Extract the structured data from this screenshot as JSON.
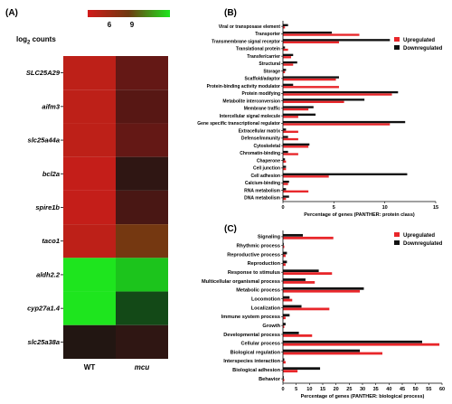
{
  "panels": {
    "a": "(A)",
    "b": "(B)",
    "c": "(C)"
  },
  "colors": {
    "up": "#e8262a",
    "down": "#111111",
    "high": "#1ee51e",
    "low": "#d11a1a"
  },
  "scale": {
    "title_main": "log",
    "title_sub": "2",
    "title_rest": " counts",
    "min": "6",
    "max": "9"
  },
  "chart_data": [
    {
      "type": "heatmap",
      "title": "",
      "columns": [
        "WT",
        "mcu"
      ],
      "rows": [
        "SLC25A29",
        "aifm3",
        "slc25a44a",
        "bcl2a",
        "spire1b",
        "taco1",
        "aldh2.2",
        "cyp27a1.4",
        "slc25a38a"
      ],
      "values": [
        [
          6.3,
          5.5
        ],
        [
          6.3,
          5.4
        ],
        [
          6.3,
          5.5
        ],
        [
          6.2,
          5.1
        ],
        [
          6.2,
          5.3
        ],
        [
          6.3,
          7.4
        ],
        [
          10.5,
          10.2
        ],
        [
          9.0,
          9.1
        ],
        [
          5.0,
          5.1
        ]
      ],
      "colorbar": {
        "ticks": [
          "6",
          "9"
        ],
        "low_color": "#d11a1a",
        "high_color": "#1ee51e"
      }
    },
    {
      "type": "bar",
      "orientation": "horizontal",
      "xlabel": "Percentage of genes (PANTHER: protein class)",
      "xlim": [
        0,
        15
      ],
      "xticks": [
        "0",
        "5",
        "10",
        "15"
      ],
      "legend_position": "top-right",
      "categories": [
        "Viral or transposase element",
        "Transporter",
        "Transmembrane signal receptor",
        "Translational protein",
        "Transfer/carrier",
        "Structural",
        "Storage",
        "Scaffold/adaptor",
        "Protein-binding activity modulator",
        "Protein modifying",
        "Metabolite interconversion",
        "Membrane traffic",
        "Intercellular signal molecule",
        "Gene specific transcriptional regulator",
        "Extracellular matrix",
        "Defense/immunity",
        "Cytoskeletal",
        "Chromatin-binding",
        "Chaperone",
        "Cell junction",
        "Cell adhesion",
        "Calcium-binding",
        "RNA metabolism",
        "DNA metabolism"
      ],
      "series": [
        {
          "name": "Upregulated",
          "values": [
            0.2,
            7.5,
            5.5,
            0.5,
            0.8,
            1.0,
            0.2,
            5.2,
            5.5,
            10.7,
            6.0,
            2.5,
            1.5,
            10.5,
            1.5,
            1.5,
            2.5,
            1.5,
            0.3,
            0.3,
            4.5,
            0.5,
            2.5,
            0.3
          ]
        },
        {
          "name": "Downregulated",
          "values": [
            0.5,
            4.8,
            10.5,
            0.2,
            1.0,
            1.4,
            0.3,
            5.5,
            1.0,
            11.3,
            8.0,
            3.0,
            3.2,
            12.0,
            0.3,
            0.5,
            2.6,
            0.5,
            0.2,
            0.3,
            12.2,
            0.6,
            0.3,
            0.6
          ]
        }
      ]
    },
    {
      "type": "bar",
      "orientation": "horizontal",
      "xlabel": "Percentage of genes (PANTHER: biological process)",
      "xlim": [
        0,
        60
      ],
      "xticks": [
        "0",
        "5",
        "10",
        "15",
        "20",
        "25",
        "30",
        "35",
        "40",
        "45",
        "50",
        "55",
        "60"
      ],
      "legend_position": "top-right",
      "categories": [
        "Signaling",
        "Rhythmic process",
        "Reproductive process",
        "Reproduction",
        "Response to stimulus",
        "Multicellular organismal process",
        "Metabolic process",
        "Locomotion",
        "Localization",
        "Immune system process",
        "Growth",
        "Developmental process",
        "Cellular process",
        "Biological regulation",
        "Interspecies interaction",
        "Biological adhesion",
        "Behavior"
      ],
      "series": [
        {
          "name": "Upregulated",
          "values": [
            19,
            0.5,
            1,
            1,
            18.5,
            12,
            29,
            3.5,
            17.5,
            1,
            0.5,
            11,
            59,
            37.5,
            1,
            5.5,
            0.5
          ]
        },
        {
          "name": "Downregulated",
          "values": [
            7.5,
            0.3,
            1.5,
            1.5,
            13.5,
            8.5,
            30.5,
            2.5,
            7,
            2.5,
            1,
            6,
            52.5,
            29,
            0.5,
            14,
            0.3
          ]
        }
      ]
    }
  ]
}
